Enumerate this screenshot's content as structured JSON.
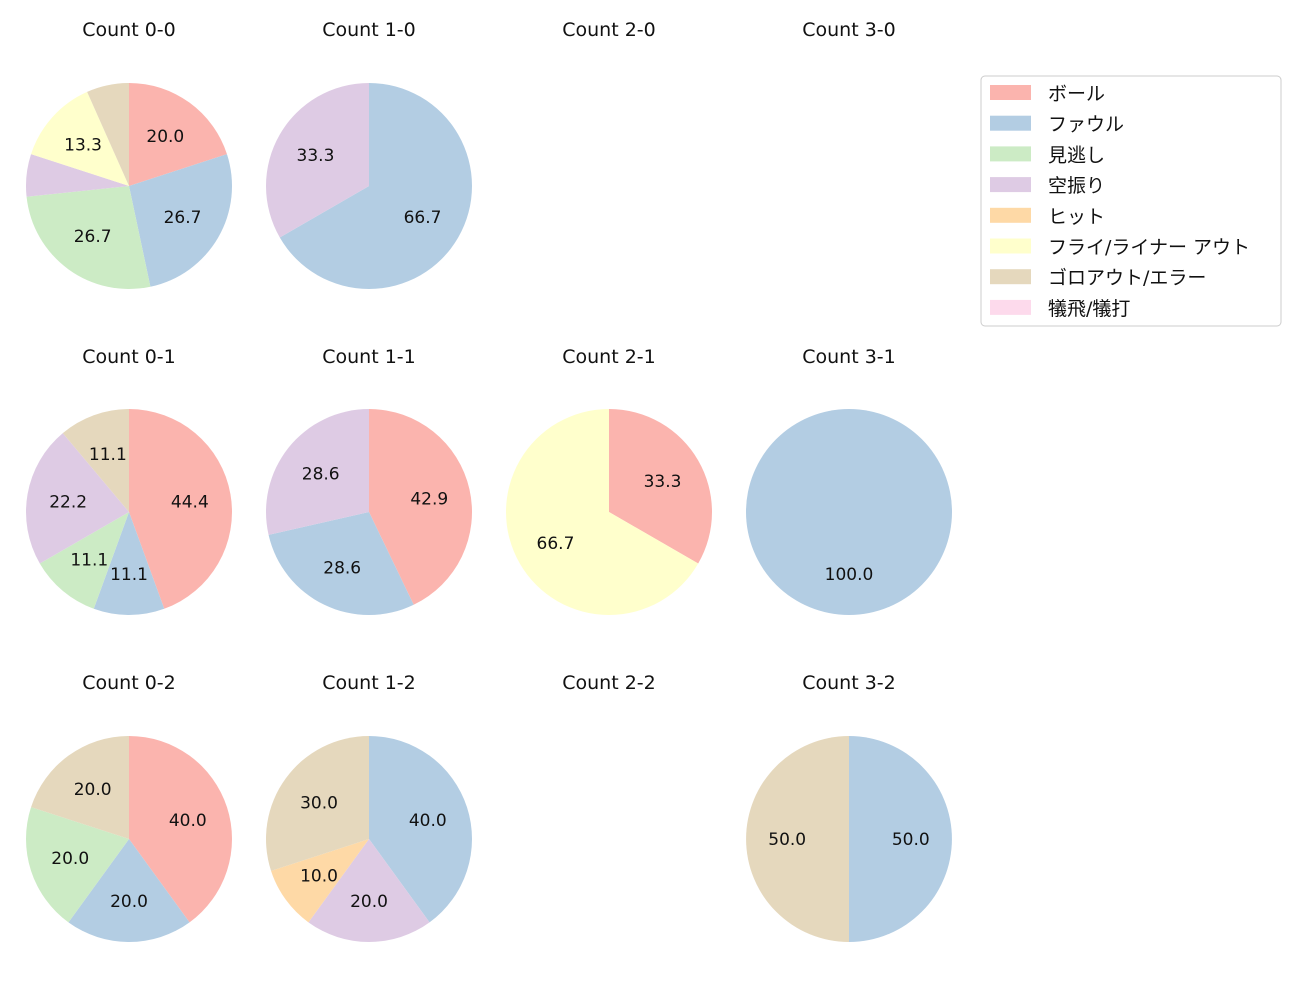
{
  "chart_data": {
    "type": "pie",
    "start_angle": "12 o'clock, clockwise",
    "categories": [
      "ボール",
      "ファウル",
      "見逃し",
      "空振り",
      "ヒット",
      "フライ/ライナー アウト",
      "ゴロアウト/エラー",
      "犠飛/犠打"
    ],
    "colors": [
      "#fbb4ae",
      "#b3cde3",
      "#ccebc5",
      "#decbe4",
      "#fed9a6",
      "#ffffcc",
      "#e5d8bd",
      "#fddaec"
    ],
    "legend_position": "top-right",
    "panels": [
      {
        "title": "Count 0-0",
        "values": [
          3,
          4,
          4,
          1,
          0,
          2,
          1,
          0
        ],
        "labels": [
          "20.0",
          "26.7",
          "26.7",
          "",
          "",
          "13.3",
          "",
          ""
        ]
      },
      {
        "title": "Count 1-0",
        "values": [
          0,
          2,
          0,
          1,
          0,
          0,
          0,
          0
        ],
        "labels": [
          "",
          "66.7",
          "",
          "33.3",
          "",
          "",
          "",
          ""
        ]
      },
      {
        "title": "Count 2-0",
        "values": [
          0,
          0,
          0,
          0,
          0,
          0,
          0,
          0
        ],
        "labels": [
          "",
          "",
          "",
          "",
          "",
          "",
          "",
          ""
        ]
      },
      {
        "title": "Count 3-0",
        "values": [
          0,
          0,
          0,
          0,
          0,
          0,
          0,
          0
        ],
        "labels": [
          "",
          "",
          "",
          "",
          "",
          "",
          "",
          ""
        ]
      },
      {
        "title": "Count 0-1",
        "values": [
          4,
          1,
          1,
          2,
          0,
          0,
          1,
          0
        ],
        "labels": [
          "44.4",
          "11.1",
          "11.1",
          "22.2",
          "",
          "",
          "11.1",
          ""
        ]
      },
      {
        "title": "Count 1-1",
        "values": [
          3,
          2,
          0,
          2,
          0,
          0,
          0,
          0
        ],
        "labels": [
          "42.9",
          "28.6",
          "",
          "28.6",
          "",
          "",
          "",
          ""
        ]
      },
      {
        "title": "Count 2-1",
        "values": [
          1,
          0,
          0,
          0,
          0,
          2,
          0,
          0
        ],
        "labels": [
          "33.3",
          "",
          "",
          "",
          "",
          "66.7",
          "",
          ""
        ]
      },
      {
        "title": "Count 3-1",
        "values": [
          0,
          1,
          0,
          0,
          0,
          0,
          0,
          0
        ],
        "labels": [
          "",
          "100.0",
          "",
          "",
          "",
          "",
          "",
          ""
        ]
      },
      {
        "title": "Count 0-2",
        "values": [
          2,
          1,
          1,
          0,
          0,
          0,
          1,
          0
        ],
        "labels": [
          "40.0",
          "20.0",
          "20.0",
          "",
          "",
          "",
          "20.0",
          ""
        ]
      },
      {
        "title": "Count 1-2",
        "values": [
          0,
          4,
          0,
          2,
          1,
          0,
          3,
          0
        ],
        "labels": [
          "",
          "40.0",
          "",
          "20.0",
          "10.0",
          "",
          "30.0",
          ""
        ]
      },
      {
        "title": "Count 2-2",
        "values": [
          0,
          0,
          0,
          0,
          0,
          0,
          0,
          0
        ],
        "labels": [
          "",
          "",
          "",
          "",
          "",
          "",
          "",
          ""
        ]
      },
      {
        "title": "Count 3-2",
        "values": [
          0,
          1,
          0,
          0,
          0,
          0,
          1,
          0
        ],
        "labels": [
          "",
          "50.0",
          "",
          "",
          "",
          "",
          "50.0",
          ""
        ]
      }
    ]
  }
}
